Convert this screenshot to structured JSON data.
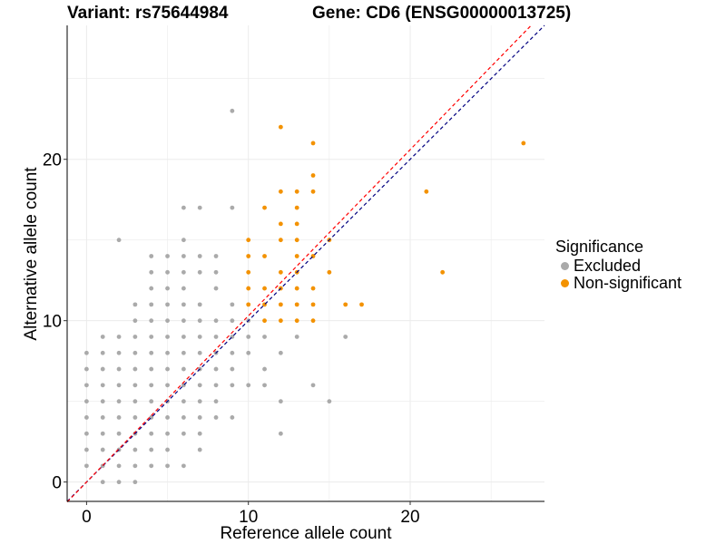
{
  "header": {
    "variant_title": "Variant: rs75644984",
    "gene_title": "Gene: CD6 (ENSG00000013725)"
  },
  "legend": {
    "title": "Significance",
    "items": [
      {
        "label": "Excluded",
        "color": "#aaaaaa"
      },
      {
        "label": "Non-significant",
        "color": "#f39200"
      }
    ]
  },
  "chart_data": {
    "type": "scatter",
    "xlabel": "Reference allele count",
    "ylabel": "Alternative allele count",
    "xlim": [
      -1.2,
      28.3
    ],
    "ylim": [
      -1.2,
      28.3
    ],
    "x_ticks": [
      0,
      10,
      20
    ],
    "y_ticks": [
      0,
      10,
      20
    ],
    "grid": true,
    "legend_position": "right",
    "reference_lines": [
      {
        "style": "dashed",
        "color": "#000080",
        "slope": 1.0,
        "intercept": 0
      },
      {
        "style": "dashed",
        "color": "#ff0000",
        "slope": 1.03,
        "intercept": 0
      }
    ],
    "series": [
      {
        "name": "Excluded",
        "color": "#aaaaaa",
        "points": [
          [
            0,
            1
          ],
          [
            0,
            2
          ],
          [
            0,
            3
          ],
          [
            0,
            4
          ],
          [
            0,
            5
          ],
          [
            0,
            6
          ],
          [
            0,
            7
          ],
          [
            0,
            8
          ],
          [
            1,
            0
          ],
          [
            1,
            1
          ],
          [
            1,
            2
          ],
          [
            1,
            3
          ],
          [
            1,
            4
          ],
          [
            1,
            5
          ],
          [
            1,
            6
          ],
          [
            1,
            7
          ],
          [
            1,
            8
          ],
          [
            1,
            9
          ],
          [
            2,
            0
          ],
          [
            2,
            1
          ],
          [
            2,
            2
          ],
          [
            2,
            3
          ],
          [
            2,
            4
          ],
          [
            2,
            5
          ],
          [
            2,
            6
          ],
          [
            2,
            7
          ],
          [
            2,
            8
          ],
          [
            2,
            9
          ],
          [
            2,
            15
          ],
          [
            3,
            0
          ],
          [
            3,
            1
          ],
          [
            3,
            2
          ],
          [
            3,
            3
          ],
          [
            3,
            4
          ],
          [
            3,
            5
          ],
          [
            3,
            6
          ],
          [
            3,
            7
          ],
          [
            3,
            8
          ],
          [
            3,
            9
          ],
          [
            3,
            10
          ],
          [
            3,
            11
          ],
          [
            4,
            1
          ],
          [
            4,
            2
          ],
          [
            4,
            3
          ],
          [
            4,
            4
          ],
          [
            4,
            5
          ],
          [
            4,
            6
          ],
          [
            4,
            7
          ],
          [
            4,
            8
          ],
          [
            4,
            9
          ],
          [
            4,
            10
          ],
          [
            4,
            11
          ],
          [
            4,
            12
          ],
          [
            4,
            13
          ],
          [
            4,
            14
          ],
          [
            5,
            1
          ],
          [
            5,
            2
          ],
          [
            5,
            3
          ],
          [
            5,
            4
          ],
          [
            5,
            5
          ],
          [
            5,
            6
          ],
          [
            5,
            7
          ],
          [
            5,
            8
          ],
          [
            5,
            9
          ],
          [
            5,
            10
          ],
          [
            5,
            11
          ],
          [
            5,
            12
          ],
          [
            5,
            13
          ],
          [
            5,
            14
          ],
          [
            6,
            1
          ],
          [
            6,
            3
          ],
          [
            6,
            4
          ],
          [
            6,
            5
          ],
          [
            6,
            6
          ],
          [
            6,
            7
          ],
          [
            6,
            8
          ],
          [
            6,
            9
          ],
          [
            6,
            10
          ],
          [
            6,
            11
          ],
          [
            6,
            12
          ],
          [
            6,
            13
          ],
          [
            6,
            14
          ],
          [
            6,
            15
          ],
          [
            6,
            17
          ],
          [
            7,
            2
          ],
          [
            7,
            3
          ],
          [
            7,
            4
          ],
          [
            7,
            5
          ],
          [
            7,
            6
          ],
          [
            7,
            7
          ],
          [
            7,
            8
          ],
          [
            7,
            9
          ],
          [
            7,
            10
          ],
          [
            7,
            11
          ],
          [
            7,
            13
          ],
          [
            7,
            14
          ],
          [
            7,
            17
          ],
          [
            8,
            4
          ],
          [
            8,
            5
          ],
          [
            8,
            6
          ],
          [
            8,
            7
          ],
          [
            8,
            8
          ],
          [
            8,
            9
          ],
          [
            8,
            10
          ],
          [
            8,
            12
          ],
          [
            8,
            13
          ],
          [
            8,
            14
          ],
          [
            9,
            4
          ],
          [
            9,
            6
          ],
          [
            9,
            7
          ],
          [
            9,
            8
          ],
          [
            9,
            9
          ],
          [
            9,
            10
          ],
          [
            9,
            11
          ],
          [
            9,
            17
          ],
          [
            9,
            23
          ],
          [
            10,
            6
          ],
          [
            10,
            8
          ],
          [
            10,
            9
          ],
          [
            10,
            10
          ],
          [
            11,
            6
          ],
          [
            11,
            7
          ],
          [
            11,
            9
          ],
          [
            12,
            3
          ],
          [
            12,
            5
          ],
          [
            12,
            8
          ],
          [
            13,
            9
          ],
          [
            14,
            6
          ],
          [
            15,
            5
          ],
          [
            16,
            9
          ]
        ]
      },
      {
        "name": "Non-significant",
        "color": "#f39200",
        "points": [
          [
            10,
            11
          ],
          [
            10,
            12
          ],
          [
            10,
            13
          ],
          [
            10,
            14
          ],
          [
            10,
            15
          ],
          [
            11,
            10
          ],
          [
            11,
            11
          ],
          [
            11,
            12
          ],
          [
            11,
            14
          ],
          [
            11,
            17
          ],
          [
            12,
            10
          ],
          [
            12,
            11
          ],
          [
            12,
            12
          ],
          [
            12,
            13
          ],
          [
            12,
            15
          ],
          [
            12,
            16
          ],
          [
            12,
            18
          ],
          [
            12,
            22
          ],
          [
            13,
            10
          ],
          [
            13,
            11
          ],
          [
            13,
            12
          ],
          [
            13,
            13
          ],
          [
            13,
            14
          ],
          [
            13,
            15
          ],
          [
            13,
            16
          ],
          [
            13,
            17
          ],
          [
            13,
            18
          ],
          [
            14,
            10
          ],
          [
            14,
            11
          ],
          [
            14,
            12
          ],
          [
            14,
            14
          ],
          [
            14,
            18
          ],
          [
            14,
            19
          ],
          [
            14,
            21
          ],
          [
            15,
            13
          ],
          [
            15,
            15
          ],
          [
            16,
            11
          ],
          [
            17,
            11
          ],
          [
            21,
            18
          ],
          [
            22,
            13
          ],
          [
            27,
            21
          ]
        ]
      }
    ]
  }
}
